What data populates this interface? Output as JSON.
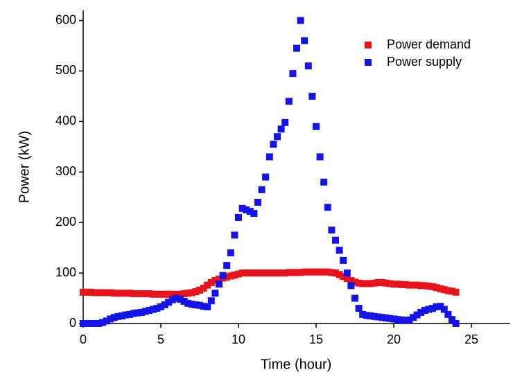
{
  "chart_data": {
    "type": "scatter",
    "x_label": "Time (hour)",
    "y_label": "Power (kW)",
    "x": [
      0,
      0.25,
      0.5,
      0.75,
      1,
      1.25,
      1.5,
      1.75,
      2,
      2.25,
      2.5,
      2.75,
      3,
      3.25,
      3.5,
      3.75,
      4,
      4.25,
      4.5,
      4.75,
      5,
      5.25,
      5.5,
      5.75,
      6,
      6.25,
      6.5,
      6.75,
      7,
      7.25,
      7.5,
      7.75,
      8,
      8.25,
      8.5,
      8.75,
      9,
      9.25,
      9.5,
      9.75,
      10,
      10.25,
      10.5,
      10.75,
      11,
      11.25,
      11.5,
      11.75,
      12,
      12.25,
      12.5,
      12.75,
      13,
      13.25,
      13.5,
      13.75,
      14,
      14.25,
      14.5,
      14.75,
      15,
      15.25,
      15.5,
      15.75,
      16,
      16.25,
      16.5,
      16.75,
      17,
      17.25,
      17.5,
      17.75,
      18,
      18.25,
      18.5,
      18.75,
      19,
      19.25,
      19.5,
      19.75,
      20,
      20.25,
      20.5,
      20.75,
      21,
      21.25,
      21.5,
      21.75,
      22,
      22.25,
      22.5,
      22.75,
      23,
      23.25,
      23.5,
      23.75,
      24
    ],
    "series": [
      {
        "name": "Power demand",
        "color": "#e8141b",
        "values": [
          62,
          62,
          62,
          61,
          61,
          61,
          61,
          61,
          60,
          60,
          60,
          60,
          60,
          59,
          59,
          59,
          59,
          59,
          58,
          58,
          58,
          58,
          58,
          58,
          58,
          58,
          59,
          60,
          61,
          63,
          66,
          70,
          76,
          81,
          85,
          88,
          90,
          92,
          94,
          96,
          98,
          100,
          100,
          100,
          100,
          100,
          100,
          100,
          100,
          100,
          100,
          100,
          100,
          101,
          101,
          101,
          101,
          102,
          102,
          102,
          102,
          102,
          102,
          102,
          101,
          100,
          97,
          93,
          89,
          85,
          82,
          80,
          79,
          79,
          79,
          80,
          81,
          81,
          80,
          79,
          78,
          78,
          77,
          77,
          76,
          76,
          76,
          75,
          75,
          74,
          73,
          71,
          69,
          67,
          65,
          64,
          62
        ]
      },
      {
        "name": "Power supply",
        "color": "#1414e6",
        "values": [
          0,
          0,
          0,
          0,
          0,
          2,
          5,
          9,
          12,
          14,
          15,
          17,
          18,
          20,
          21,
          22,
          24,
          26,
          28,
          30,
          33,
          37,
          42,
          47,
          50,
          48,
          44,
          40,
          38,
          37,
          36,
          34,
          33,
          45,
          60,
          78,
          95,
          115,
          140,
          175,
          210,
          228,
          225,
          222,
          218,
          240,
          265,
          290,
          330,
          355,
          370,
          385,
          398,
          440,
          495,
          545,
          600,
          560,
          510,
          450,
          390,
          330,
          280,
          230,
          185,
          165,
          145,
          125,
          100,
          75,
          50,
          30,
          18,
          16,
          15,
          14,
          13,
          12,
          11,
          10,
          9,
          8,
          7,
          6,
          7,
          12,
          17,
          22,
          26,
          28,
          30,
          33,
          34,
          28,
          18,
          8,
          0
        ]
      }
    ],
    "xlim": [
      0,
      27.5
    ],
    "ylim": [
      0,
      620
    ],
    "xticks": [
      0,
      5,
      10,
      15,
      20,
      25
    ],
    "yticks": [
      0,
      100,
      200,
      300,
      400,
      500,
      600
    ],
    "legend": "upper right",
    "grid": false
  }
}
